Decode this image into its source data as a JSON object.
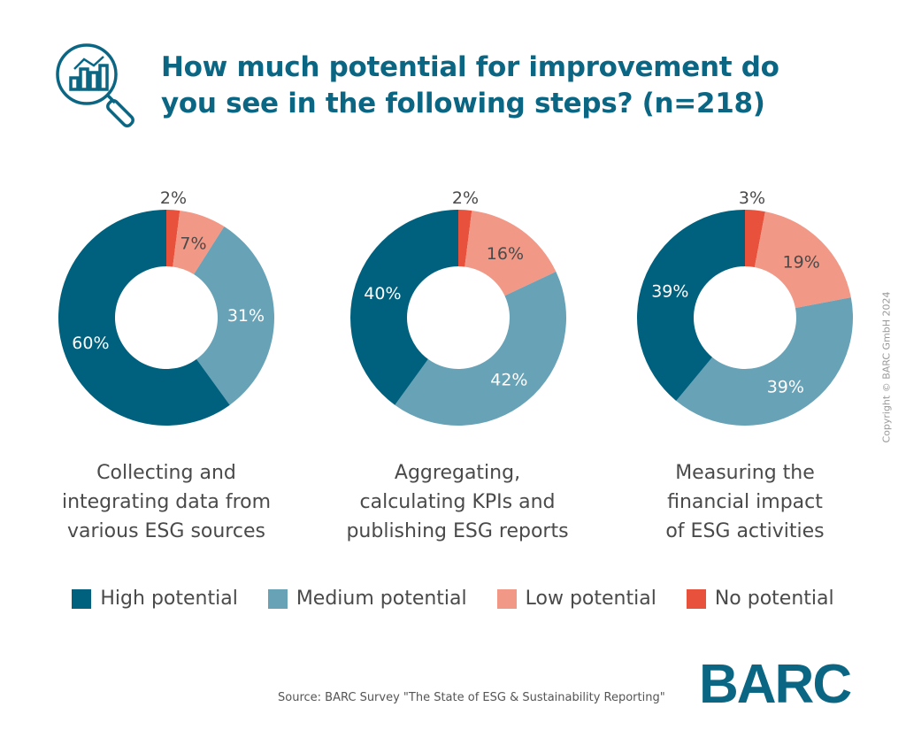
{
  "title_lines": [
    "How much potential for improvement do",
    "you see in the following steps? (n=218)"
  ],
  "colors": {
    "title": "#0b6683",
    "High potential": "#00617e",
    "Medium potential": "#67a2b7",
    "Low potential": "#f29886",
    "No potential": "#e8513b"
  },
  "icon": "magnifier-chart-icon",
  "chart_data": {
    "type": "donut",
    "series_order": [
      "No potential",
      "Low potential",
      "Medium potential",
      "High potential"
    ],
    "charts": [
      {
        "category": [
          "Collecting and",
          "integrating data from",
          "various ESG sources"
        ],
        "values": {
          "High potential": 60,
          "Medium potential": 31,
          "Low potential": 7,
          "No potential": 2
        }
      },
      {
        "category": [
          "Aggregating,",
          "calculating KPIs and",
          "publishing ESG reports"
        ],
        "values": {
          "High potential": 40,
          "Medium potential": 42,
          "Low potential": 16,
          "No potential": 2
        }
      },
      {
        "category": [
          "Measuring the",
          "financial impact",
          "of ESG activities"
        ],
        "values": {
          "High potential": 39,
          "Medium potential": 39,
          "Low potential": 19,
          "No potential": 3
        }
      }
    ],
    "legend": [
      "High potential",
      "Medium potential",
      "Low potential",
      "No potential"
    ],
    "legend_position": "bottom",
    "unit": "%"
  },
  "source": "Source: BARC Survey \"The State of ESG & Sustainability Reporting\"",
  "logo": "BARC",
  "copyright": "Copyright © BARC GmbH 2024"
}
